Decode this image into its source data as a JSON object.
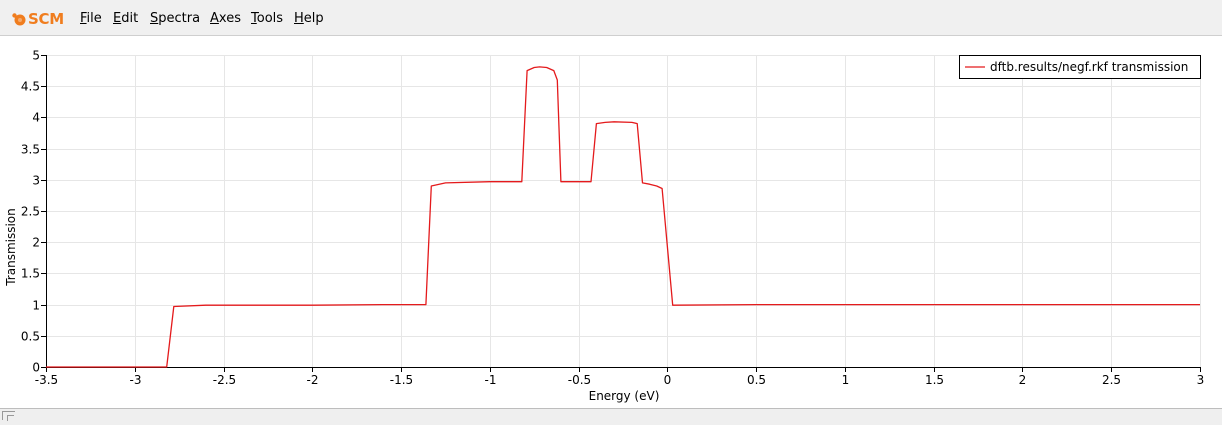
{
  "app": {
    "logo_text": "SCM"
  },
  "menu": [
    {
      "accel": "F",
      "rest": "ile"
    },
    {
      "accel": "E",
      "rest": "dit"
    },
    {
      "accel": "S",
      "rest": "pectra"
    },
    {
      "accel": "A",
      "rest": "xes"
    },
    {
      "accel": "T",
      "rest": "ools"
    },
    {
      "accel": "H",
      "rest": "elp"
    }
  ],
  "colors": {
    "series": "#e41a1c",
    "logo": "#f07d1e",
    "grid": "#e6e6e6"
  },
  "chart_data": {
    "type": "line",
    "title": "",
    "xlabel": "Energy (eV)",
    "ylabel": "Transmission",
    "xlim": [
      -3.5,
      3
    ],
    "ylim": [
      0,
      5
    ],
    "xticks": [
      -3.5,
      -3,
      -2.5,
      -2,
      -1.5,
      -1,
      -0.5,
      0,
      0.5,
      1,
      1.5,
      2,
      2.5,
      3
    ],
    "xtick_labels": [
      "-3.5",
      "-3",
      "-2.5",
      "-2",
      "-1.5",
      "-1",
      "-0.5",
      "0",
      "0.5",
      "1",
      "1.5",
      "2",
      "2.5",
      "3"
    ],
    "yticks": [
      0,
      0.5,
      1,
      1.5,
      2,
      2.5,
      3,
      3.5,
      4,
      4.5,
      5
    ],
    "ytick_labels": [
      "0",
      "0.5",
      "1",
      "1.5",
      "2",
      "2.5",
      "3",
      "3.5",
      "4",
      "4.5",
      "5"
    ],
    "grid": true,
    "legend_position": "top-right",
    "series": [
      {
        "name": "dftb.results/negf.rkf transmission",
        "x": [
          -3.5,
          -2.82,
          -2.78,
          -2.6,
          -2.0,
          -1.6,
          -1.36,
          -1.33,
          -1.25,
          -1.0,
          -0.82,
          -0.79,
          -0.75,
          -0.72,
          -0.68,
          -0.64,
          -0.62,
          -0.6,
          -0.43,
          -0.4,
          -0.35,
          -0.3,
          -0.2,
          -0.17,
          -0.14,
          -0.1,
          -0.06,
          -0.03,
          0.03,
          0.5,
          1.5,
          3.0
        ],
        "values": [
          0,
          0,
          0.97,
          0.99,
          0.99,
          1.0,
          1.0,
          2.9,
          2.95,
          2.97,
          2.97,
          4.75,
          4.8,
          4.81,
          4.8,
          4.75,
          4.6,
          2.97,
          2.97,
          3.9,
          3.92,
          3.93,
          3.92,
          3.9,
          2.95,
          2.93,
          2.9,
          2.86,
          0.99,
          1.0,
          1.0,
          1.0
        ]
      }
    ]
  }
}
